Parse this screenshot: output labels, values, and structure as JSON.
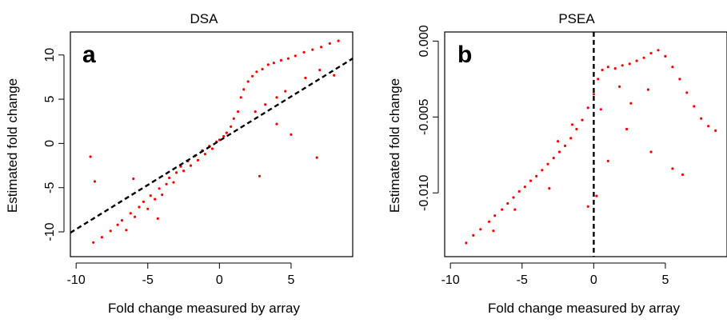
{
  "chart_data": [
    {
      "type": "scatter",
      "title": "DSA",
      "panel_label": "a",
      "xlabel": "Fold change measured by array",
      "ylabel": "Estimated fold change",
      "xlim": [
        -10.4,
        9.3
      ],
      "ylim": [
        -12.8,
        12.6
      ],
      "xticks": [
        -10,
        -5,
        0,
        5
      ],
      "xtick_labels": [
        "-10",
        "-5",
        "0",
        "5"
      ],
      "yticks": [
        -10,
        -5,
        0,
        5,
        10
      ],
      "ytick_labels": [
        "-10",
        "-5",
        "0",
        "5",
        "10"
      ],
      "grid": false,
      "point_color": "#ff0000",
      "reference_line": {
        "style": "dashed",
        "color": "#000000",
        "slope": 1.0,
        "intercept": 0.3
      },
      "series": [
        {
          "points": [
            [
              -8.8,
              -11.2
            ],
            [
              -8.2,
              -10.6
            ],
            [
              -7.6,
              -9.9
            ],
            [
              -7.1,
              -9.2
            ],
            [
              -6.8,
              -8.7
            ],
            [
              -6.5,
              -9.8
            ],
            [
              -6.2,
              -7.9
            ],
            [
              -5.9,
              -8.3
            ],
            [
              -5.6,
              -7.2
            ],
            [
              -5.3,
              -6.6
            ],
            [
              -5.0,
              -7.4
            ],
            [
              -4.8,
              -5.9
            ],
            [
              -4.5,
              -6.3
            ],
            [
              -4.2,
              -5.1
            ],
            [
              -4.0,
              -5.8
            ],
            [
              -3.7,
              -4.6
            ],
            [
              -3.5,
              -3.9
            ],
            [
              -3.2,
              -4.4
            ],
            [
              -3.0,
              -3.3
            ],
            [
              -2.7,
              -2.6
            ],
            [
              -2.5,
              -3.1
            ],
            [
              -2.2,
              -2.0
            ],
            [
              -2.0,
              -2.5
            ],
            [
              -1.7,
              -1.4
            ],
            [
              -1.5,
              -1.9
            ],
            [
              -1.2,
              -0.8
            ],
            [
              -1.0,
              -1.2
            ],
            [
              -0.7,
              -0.3
            ],
            [
              -0.5,
              -0.6
            ],
            [
              -0.2,
              0.2
            ],
            [
              0.0,
              0.4
            ],
            [
              0.3,
              0.8
            ],
            [
              0.5,
              1.2
            ],
            [
              0.8,
              1.9
            ],
            [
              1.0,
              2.8
            ],
            [
              1.3,
              3.6
            ],
            [
              1.5,
              5.2
            ],
            [
              1.7,
              6.1
            ],
            [
              2.0,
              7.0
            ],
            [
              2.3,
              7.6
            ],
            [
              2.6,
              8.1
            ],
            [
              3.0,
              8.4
            ],
            [
              3.4,
              8.9
            ],
            [
              3.8,
              9.1
            ],
            [
              4.3,
              9.4
            ],
            [
              4.8,
              9.6
            ],
            [
              5.3,
              9.9
            ],
            [
              5.9,
              10.3
            ],
            [
              6.5,
              10.6
            ],
            [
              7.1,
              10.9
            ],
            [
              7.7,
              11.3
            ],
            [
              8.3,
              11.6
            ],
            [
              2.5,
              3.6
            ],
            [
              3.2,
              4.4
            ],
            [
              4.0,
              5.2
            ],
            [
              4.6,
              5.9
            ],
            [
              6.0,
              7.4
            ],
            [
              7.0,
              8.3
            ],
            [
              5.0,
              1.0
            ],
            [
              6.8,
              -1.6
            ],
            [
              -9.0,
              -1.5
            ],
            [
              -8.7,
              -4.3
            ],
            [
              -6.0,
              -4.0
            ],
            [
              -4.3,
              -8.5
            ],
            [
              2.8,
              -3.7
            ],
            [
              4.0,
              2.2
            ],
            [
              8.0,
              7.7
            ]
          ]
        }
      ]
    },
    {
      "type": "scatter",
      "title": "PSEA",
      "panel_label": "b",
      "xlabel": "Fold change measured by array",
      "ylabel": "Estimated fold change",
      "xlim": [
        -10.4,
        9.3
      ],
      "ylim": [
        -0.0142,
        0.0006
      ],
      "xticks": [
        -10,
        -5,
        0,
        5
      ],
      "xtick_labels": [
        "-10",
        "-5",
        "0",
        "5"
      ],
      "yticks": [
        -0.01,
        -0.005,
        0.0
      ],
      "ytick_labels": [
        "-0.010",
        "-0.005",
        "0.000"
      ],
      "grid": false,
      "point_color": "#ff0000",
      "reference_line": {
        "style": "dashed",
        "color": "#000000",
        "vertical_x": 0
      },
      "series": [
        {
          "points": [
            [
              -8.9,
              -0.0133
            ],
            [
              -8.4,
              -0.0128
            ],
            [
              -7.9,
              -0.0124
            ],
            [
              -7.3,
              -0.0119
            ],
            [
              -6.9,
              -0.0115
            ],
            [
              -6.4,
              -0.0111
            ],
            [
              -6.0,
              -0.0107
            ],
            [
              -5.6,
              -0.0103
            ],
            [
              -5.2,
              -0.0099
            ],
            [
              -4.8,
              -0.0096
            ],
            [
              -4.4,
              -0.0092
            ],
            [
              -4.0,
              -0.0089
            ],
            [
              -3.6,
              -0.0085
            ],
            [
              -3.2,
              -0.0081
            ],
            [
              -2.8,
              -0.0077
            ],
            [
              -2.4,
              -0.0073
            ],
            [
              -2.0,
              -0.0069
            ],
            [
              -1.6,
              -0.0064
            ],
            [
              -1.2,
              -0.0058
            ],
            [
              -0.8,
              -0.0052
            ],
            [
              -0.4,
              -0.0044
            ],
            [
              0.0,
              -0.0035
            ],
            [
              0.3,
              -0.0025
            ],
            [
              0.6,
              -0.0019
            ],
            [
              1.0,
              -0.0017
            ],
            [
              1.5,
              -0.0018
            ],
            [
              2.0,
              -0.0016
            ],
            [
              2.5,
              -0.0015
            ],
            [
              3.0,
              -0.0013
            ],
            [
              3.5,
              -0.0011
            ],
            [
              4.0,
              -0.0008
            ],
            [
              4.5,
              -0.0006
            ],
            [
              5.0,
              -0.001
            ],
            [
              5.5,
              -0.0017
            ],
            [
              6.0,
              -0.0025
            ],
            [
              6.5,
              -0.0034
            ],
            [
              7.0,
              -0.0043
            ],
            [
              7.5,
              -0.0051
            ],
            [
              8.0,
              -0.0056
            ],
            [
              8.5,
              -0.0059
            ],
            [
              5.5,
              -0.0084
            ],
            [
              6.2,
              -0.0088
            ],
            [
              4.0,
              -0.0073
            ],
            [
              2.3,
              -0.0058
            ],
            [
              1.0,
              -0.0079
            ],
            [
              0.2,
              -0.0102
            ],
            [
              -0.4,
              -0.0109
            ],
            [
              -3.1,
              -0.0097
            ],
            [
              -5.5,
              -0.0111
            ],
            [
              -7.0,
              -0.0125
            ],
            [
              2.6,
              -0.0041
            ],
            [
              3.8,
              -0.0032
            ],
            [
              1.8,
              -0.003
            ],
            [
              0.5,
              -0.0045
            ],
            [
              -1.5,
              -0.0055
            ],
            [
              -2.5,
              -0.0066
            ]
          ]
        }
      ]
    }
  ]
}
